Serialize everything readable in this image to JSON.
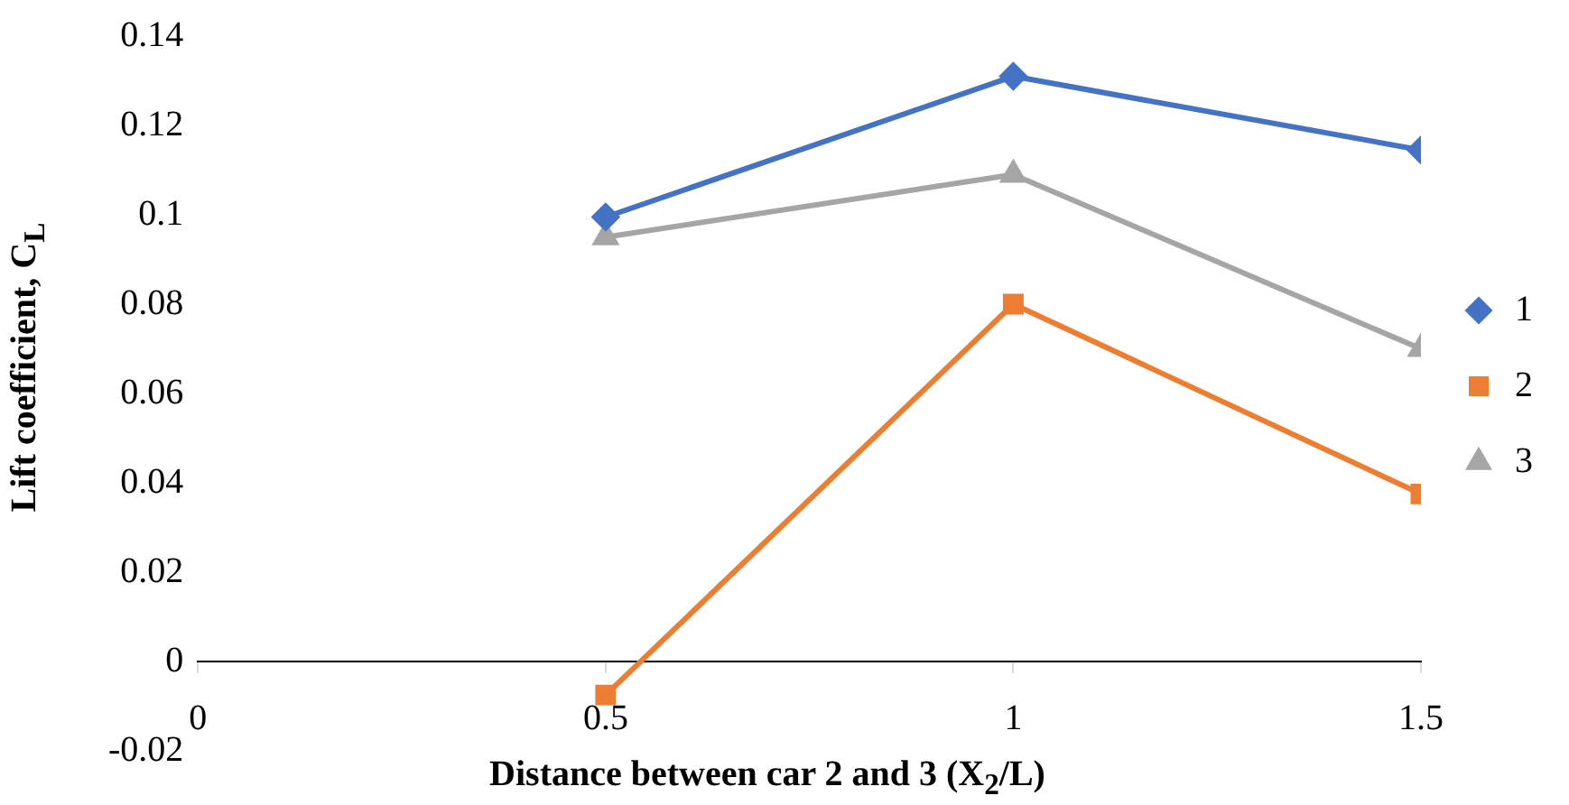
{
  "chart_data": {
    "type": "line",
    "xlabel": "Distance between car 2 and 3 (X$_{2}$/L)",
    "ylabel": "Lift coefficient, C$_{L}$",
    "x": [
      0.5,
      1,
      1.5
    ],
    "series": [
      {
        "name": "1",
        "color": "#4472c4",
        "marker": "diamond",
        "values": [
          0.0995,
          0.131,
          0.1145
        ]
      },
      {
        "name": "2",
        "color": "#ed7d31",
        "marker": "square",
        "values": [
          -0.0075,
          0.08,
          0.0375
        ]
      },
      {
        "name": "3",
        "color": "#a5a5a5",
        "marker": "triangle",
        "values": [
          0.095,
          0.109,
          0.07
        ]
      }
    ],
    "xlim": [
      0,
      1.5
    ],
    "xticks": [
      0,
      0.5,
      1,
      1.5
    ],
    "ylim": [
      -0.02,
      0.14
    ],
    "yticks": [
      -0.02,
      0,
      0.02,
      0.04,
      0.06,
      0.08,
      0.1,
      0.12,
      0.14
    ],
    "grid": false,
    "legend": "right",
    "line_style": "solid"
  }
}
